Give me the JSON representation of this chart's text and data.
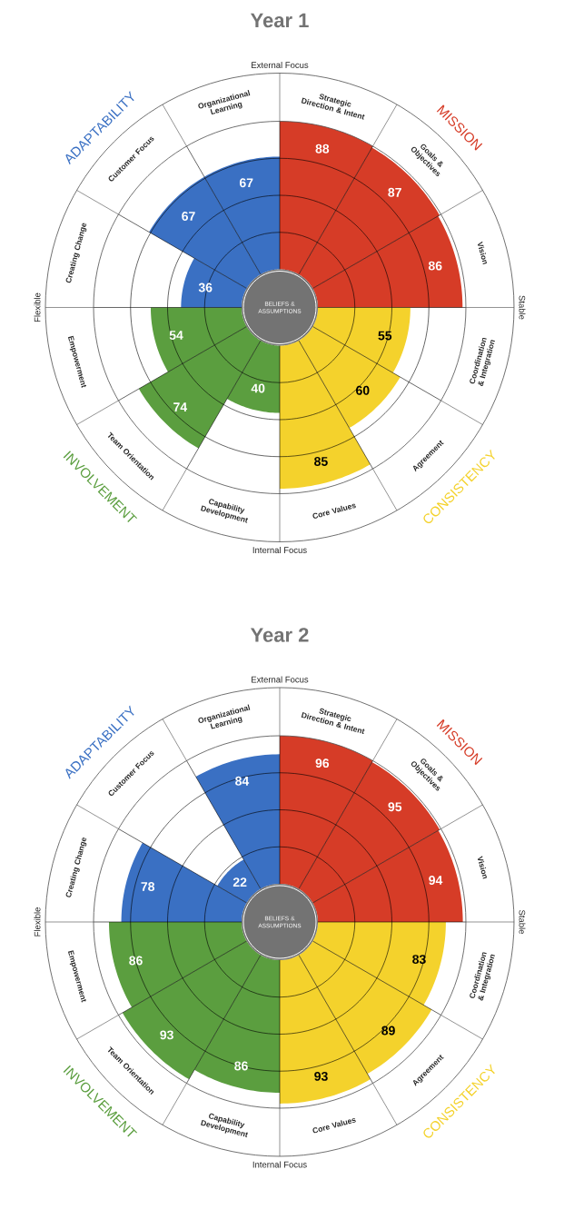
{
  "chart_data": [
    {
      "type": "other",
      "title": "Year 1",
      "categories": [
        "Strategic Direction & Intent",
        "Goals & Objectives",
        "Vision",
        "Coordination & Integration",
        "Agreement",
        "Core Values",
        "Capability Development",
        "Team Orientation",
        "Empowerment",
        "Creating Change",
        "Customer Focus",
        "Organizational Learning"
      ],
      "series": [
        {
          "values": [
            88,
            87,
            86,
            55,
            60,
            85,
            40,
            74,
            54,
            36,
            67,
            67
          ],
          "colors": [
            "#d63c27",
            "#d63c27",
            "#d63c27",
            "#f4d22c",
            "#f4d22c",
            "#f4d22c",
            "#5b9e3f",
            "#5b9e3f",
            "#5b9e3f",
            "#3a70c3",
            "#3a70c3",
            "#3a70c3"
          ]
        }
      ],
      "data_labels": true,
      "annotations": [
        "MISSION",
        "CONSISTENCY",
        "INVOLVEMENT",
        "ADAPTABILITY",
        "External Focus",
        "Stable",
        "Internal Focus",
        "Flexible",
        "BELIEFS & ASSUMPTIONS"
      ]
    },
    {
      "type": "other",
      "title": "Year 2",
      "categories": [
        "Strategic Direction & Intent",
        "Goals & Objectives",
        "Vision",
        "Coordination & Integration",
        "Agreement",
        "Core Values",
        "Capability Development",
        "Team Orientation",
        "Empowerment",
        "Creating Change",
        "Customer Focus",
        "Organizational Learning"
      ],
      "series": [
        {
          "values": [
            96,
            95,
            94,
            83,
            89,
            93,
            86,
            93,
            86,
            78,
            22,
            84
          ],
          "colors": [
            "#d63c27",
            "#d63c27",
            "#d63c27",
            "#f4d22c",
            "#f4d22c",
            "#f4d22c",
            "#5b9e3f",
            "#5b9e3f",
            "#5b9e3f",
            "#3a70c3",
            "#3a70c3",
            "#3a70c3"
          ]
        }
      ],
      "data_labels": true,
      "annotations": [
        "MISSION",
        "CONSISTENCY",
        "INVOLVEMENT",
        "ADAPTABILITY",
        "External Focus",
        "Stable",
        "Internal Focus",
        "Flexible",
        "BELIEFS & ASSUMPTIONS"
      ]
    }
  ]
}
